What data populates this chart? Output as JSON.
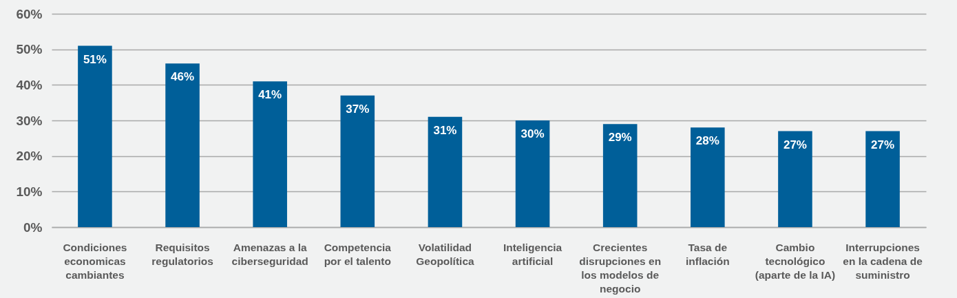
{
  "chart_data": {
    "type": "bar",
    "categories": [
      "Condiciones\neconomicas\ncambiantes",
      "Requisitos\nregulatorios",
      "Amenazas a la\nciberseguridad",
      "Competencia\npor el talento",
      "Volatilidad\nGeopolítica",
      "Inteligencia\nartificial",
      "Crecientes\ndisrupciones en\nlos modelos de\nnegocio",
      "Tasa de\ninflación",
      "Cambio\ntecnológico\n(aparte de la IA)",
      "Interrupciones\nen la cadena de\nsuministro"
    ],
    "values": [
      51,
      46,
      41,
      37,
      31,
      30,
      29,
      28,
      27,
      27
    ],
    "value_labels": [
      "51%",
      "46%",
      "41%",
      "37%",
      "31%",
      "30%",
      "29%",
      "28%",
      "27%",
      "27%"
    ],
    "color": "#005f99",
    "ylim": [
      0,
      60
    ],
    "yticks": [
      {
        "value": 0,
        "label": "0%"
      },
      {
        "value": 10,
        "label": "10%"
      },
      {
        "value": 20,
        "label": "20%"
      },
      {
        "value": 30,
        "label": "30%"
      },
      {
        "value": 40,
        "label": "40%"
      },
      {
        "value": 50,
        "label": "50%"
      },
      {
        "value": 60,
        "label": "60%"
      }
    ],
    "grid": "y"
  }
}
